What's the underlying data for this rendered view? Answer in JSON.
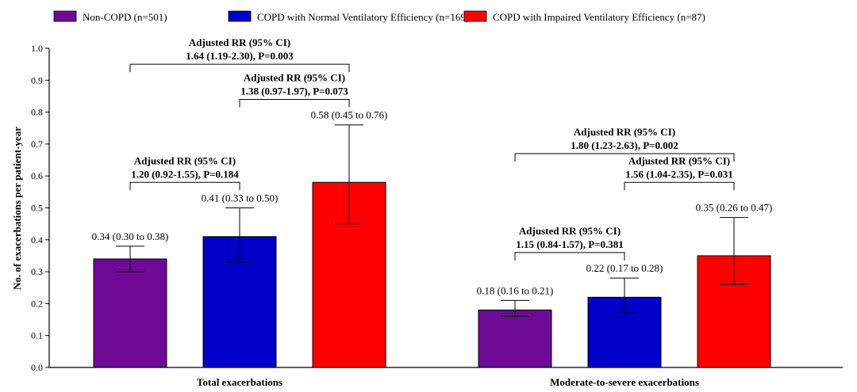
{
  "chart_data": {
    "type": "bar",
    "ylabel": "No. of exacerbations per patient-year",
    "ylim": [
      0,
      1.0
    ],
    "yticks": [
      "0.0",
      "0.1",
      "0.2",
      "0.3",
      "0.4",
      "0.5",
      "0.6",
      "0.7",
      "0.8",
      "0.9",
      "1.0"
    ],
    "categories": [
      "Total exacerbations",
      "Moderate-to-severe exacerbations"
    ],
    "series": [
      {
        "name": "Non-COPD (n=501)",
        "color": "#6f0a96",
        "values": [
          0.34,
          0.18
        ],
        "ci_low": [
          0.3,
          0.16
        ],
        "ci_high": [
          0.38,
          0.21
        ],
        "labels": [
          "0.34 (0.30 to 0.38)",
          "0.18 (0.16 to 0.21)"
        ]
      },
      {
        "name": "COPD with Normal Ventilatory Efficiency (n=169)",
        "color": "#0000c8",
        "values": [
          0.41,
          0.22
        ],
        "ci_low": [
          0.33,
          0.17
        ],
        "ci_high": [
          0.5,
          0.28
        ],
        "labels": [
          "0.41 (0.33 to 0.50)",
          "0.22 (0.17 to 0.28)"
        ]
      },
      {
        "name": "COPD with Impaired Ventilatory Efficiency (n=87)",
        "color": "#ff0000",
        "values": [
          0.58,
          0.35
        ],
        "ci_low": [
          0.45,
          0.26
        ],
        "ci_high": [
          0.76,
          0.47
        ],
        "labels": [
          "0.58 (0.45 to 0.76)",
          "0.35 (0.26 to 0.47)"
        ]
      }
    ],
    "annotations": [
      {
        "group": 0,
        "from": 0,
        "to": 1,
        "level": 0.58,
        "line1": "Adjusted RR (95% CI)",
        "line2": "1.20 (0.92-1.55), P=0.184"
      },
      {
        "group": 0,
        "from": 1,
        "to": 2,
        "level": 0.84,
        "line1": "Adjusted RR (95% CI)",
        "line2": "1.38 (0.97-1.97), P=0.073"
      },
      {
        "group": 0,
        "from": 0,
        "to": 2,
        "level": 0.95,
        "line1": "Adjusted RR (95% CI)",
        "line2": "1.64 (1.19-2.30), P=0.003"
      },
      {
        "group": 1,
        "from": 0,
        "to": 1,
        "level": 0.36,
        "line1": "Adjusted RR (95% CI)",
        "line2": "1.15 (0.84-1.57), P=0.381"
      },
      {
        "group": 1,
        "from": 1,
        "to": 2,
        "level": 0.58,
        "line1": "Adjusted RR (95% CI)",
        "line2": "1.56 (1.04-2.35), P=0.031"
      },
      {
        "group": 1,
        "from": 0,
        "to": 2,
        "level": 0.67,
        "line1": "Adjusted RR (95% CI)",
        "line2": "1.80 (1.23-2.63), P=0.002"
      }
    ]
  }
}
